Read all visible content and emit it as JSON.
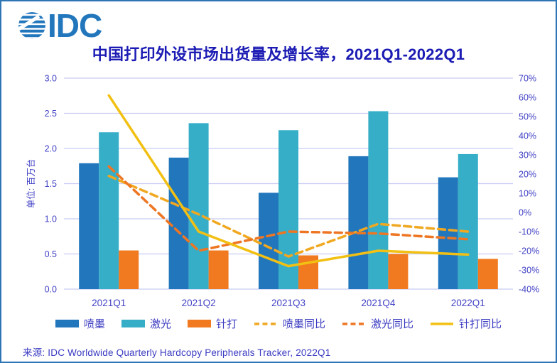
{
  "logo": {
    "text": "IDC",
    "color": "#2176BC"
  },
  "header": {
    "title_zh": "中国打印外设市场出货量及增长率，",
    "title_period": "2021Q1-2022Q1",
    "title_color": "#1C1CB4"
  },
  "chart_data": {
    "type": "bar+line",
    "title": "中国打印外设市场出货量及增长率，2021Q1-2022Q1",
    "categories": [
      "2021Q1",
      "2021Q2",
      "2021Q3",
      "2021Q4",
      "2022Q1"
    ],
    "bar_series": [
      {
        "name": "喷墨",
        "color": "#2276BC",
        "values": [
          1.79,
          1.87,
          1.37,
          1.89,
          1.59
        ]
      },
      {
        "name": "激光",
        "color": "#36AEC8",
        "values": [
          2.23,
          2.36,
          2.26,
          2.53,
          1.92
        ]
      },
      {
        "name": "针打",
        "color": "#F1791F",
        "values": [
          0.55,
          0.55,
          0.48,
          0.5,
          0.43
        ]
      }
    ],
    "line_series": [
      {
        "name": "喷墨同比",
        "color": "#F0A820",
        "style": "dashed",
        "values_pct": [
          19,
          -1,
          -23,
          -6,
          -10
        ]
      },
      {
        "name": "激光同比",
        "color": "#EE7623",
        "style": "dashed",
        "values_pct": [
          24,
          -20,
          -10,
          -11,
          -14
        ]
      },
      {
        "name": "针打同比",
        "color": "#F2C013",
        "style": "solid",
        "values_pct": [
          61,
          -10,
          -28,
          -20,
          -22
        ]
      }
    ],
    "left_axis": {
      "title": "单位: 百万台",
      "min": 0,
      "max": 3,
      "step": 0.5,
      "decimals": 1
    },
    "right_axis": {
      "min": -40,
      "max": 70,
      "step": 10,
      "suffix": "%"
    },
    "grid": true,
    "legend_position": "bottom"
  },
  "colors": {
    "grid": "#C8CCF2",
    "axis_text": "#4242C6",
    "border": "#2E75B6"
  },
  "footer": {
    "source": "来源:  IDC Worldwide Quarterly Hardcopy Peripherals Tracker, 2022Q1"
  }
}
